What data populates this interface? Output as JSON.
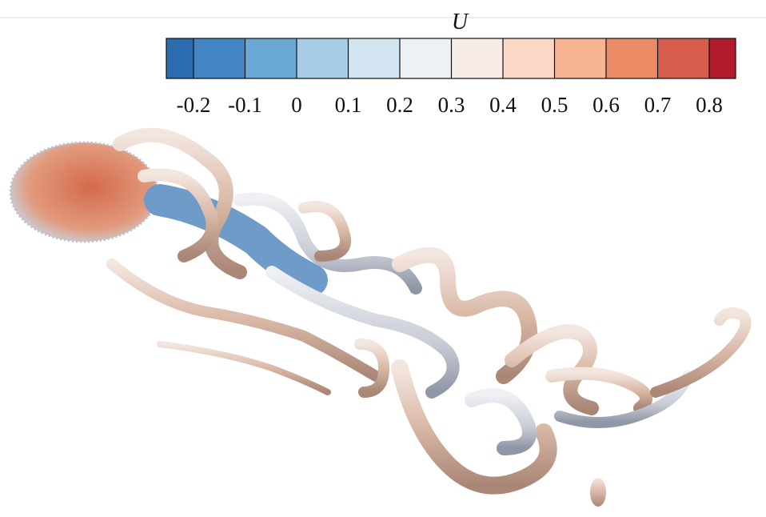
{
  "colorbar": {
    "title": "U",
    "ticks": [
      -0.2,
      -0.1,
      0,
      0.1,
      0.2,
      0.3,
      0.4,
      0.5,
      0.6,
      0.7,
      0.8
    ],
    "colors": [
      "#2b6cb0",
      "#4286c4",
      "#6aa9d5",
      "#a7cde6",
      "#d3e5f0",
      "#edf1f4",
      "#f8ece7",
      "#fbd7c6",
      "#f6b492",
      "#ec8c66",
      "#d65c4c",
      "#b01a2c"
    ]
  }
}
